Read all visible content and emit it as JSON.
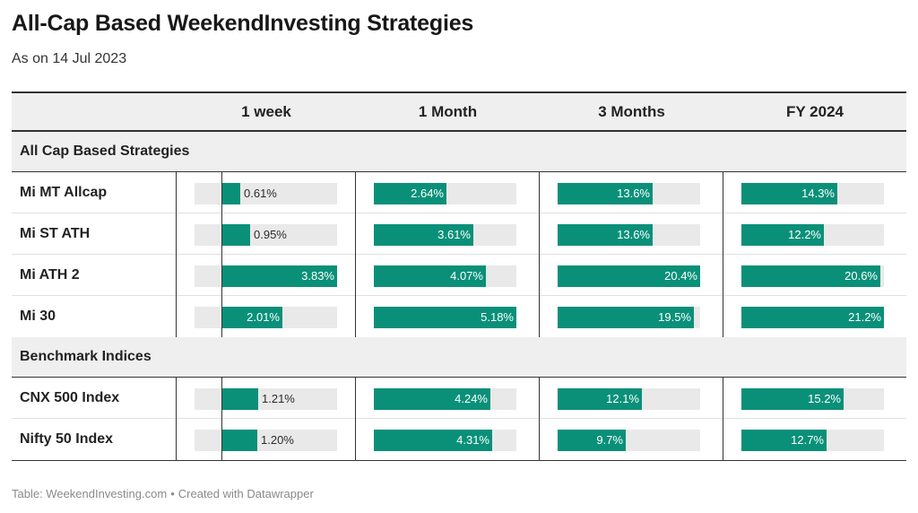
{
  "title": "All-Cap Based WeekendInvesting Strategies",
  "subtitle": "As on 14 Jul 2023",
  "footer": {
    "source": "Table: WeekendInvesting.com",
    "credit": "Created with Datawrapper"
  },
  "colors": {
    "bar": "#0a9079",
    "track": "#e9e9e9",
    "header_bg": "#efefef"
  },
  "chart_data": {
    "type": "table",
    "columns": [
      "1 week",
      "1 Month",
      "3 Months",
      "FY 2024"
    ],
    "column_max": [
      3.83,
      5.18,
      20.4,
      21.2
    ],
    "groups": [
      {
        "label": "All Cap Based Strategies",
        "rows": [
          {
            "name": "Mi MT Allcap",
            "values": [
              0.61,
              2.64,
              13.6,
              14.3
            ],
            "labels": [
              "0.61%",
              "2.64%",
              "13.6%",
              "14.3%"
            ]
          },
          {
            "name": "Mi ST ATH",
            "values": [
              0.95,
              3.61,
              13.6,
              12.2
            ],
            "labels": [
              "0.95%",
              "3.61%",
              "13.6%",
              "12.2%"
            ]
          },
          {
            "name": "Mi ATH 2",
            "values": [
              3.83,
              4.07,
              20.4,
              20.6
            ],
            "labels": [
              "3.83%",
              "4.07%",
              "20.4%",
              "20.6%"
            ]
          },
          {
            "name": "Mi 30",
            "values": [
              2.01,
              5.18,
              19.5,
              21.2
            ],
            "labels": [
              "2.01%",
              "5.18%",
              "19.5%",
              "21.2%"
            ]
          }
        ]
      },
      {
        "label": "Benchmark Indices",
        "rows": [
          {
            "name": "CNX 500 Index",
            "values": [
              1.21,
              4.24,
              12.1,
              15.2
            ],
            "labels": [
              "1.21%",
              "4.24%",
              "12.1%",
              "15.2%"
            ]
          },
          {
            "name": "Nifty 50 Index",
            "values": [
              1.2,
              4.31,
              9.7,
              12.7
            ],
            "labels": [
              "1.20%",
              "4.31%",
              "9.7%",
              "12.7%"
            ]
          }
        ]
      }
    ]
  }
}
